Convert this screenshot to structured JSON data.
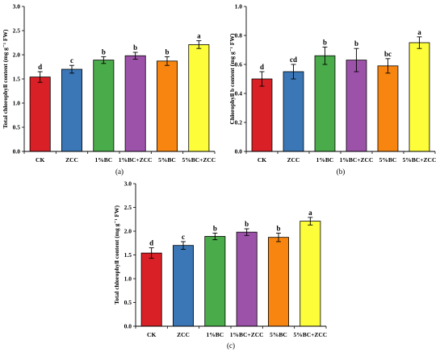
{
  "colors": {
    "CK": "#d92026",
    "ZCC": "#3b77b6",
    "1%BC": "#4aab4a",
    "1%BC+ZCC": "#9d52a9",
    "5%BC": "#f7850f",
    "5%BC+ZCC": "#fdfd3a"
  },
  "chart_data": [
    {
      "type": "bar",
      "caption": "(a)",
      "ylabel": "Total chlorophyll content (mg g⁻¹ FW)",
      "ylim": [
        0,
        3.0
      ],
      "yticks": [
        "0.0",
        "0.5",
        "1.0",
        "1.5",
        "2.0",
        "2.5",
        "3.0"
      ],
      "categories": [
        "CK",
        "ZCC",
        "1%BC",
        "1%BC+ZCC",
        "5%BC",
        "5%BC+ZCC"
      ],
      "values": [
        1.54,
        1.7,
        1.89,
        1.98,
        1.87,
        2.21
      ],
      "errors": [
        0.11,
        0.08,
        0.07,
        0.07,
        0.09,
        0.08
      ],
      "letters": [
        "d",
        "c",
        "b",
        "b",
        "b",
        "a"
      ]
    },
    {
      "type": "bar",
      "caption": "(b)",
      "ylabel": "Chlorophyll b content (mg g⁻¹ FW)",
      "ylim": [
        0,
        1.0
      ],
      "yticks": [
        "0.0",
        "0.2",
        "0.4",
        "0.6",
        "0.8",
        "1.0"
      ],
      "categories": [
        "CK",
        "ZCC",
        "1%BC",
        "1%BC+ZCC",
        "5%BC",
        "5%BC+ZCC"
      ],
      "values": [
        0.5,
        0.55,
        0.66,
        0.63,
        0.59,
        0.75
      ],
      "errors": [
        0.05,
        0.05,
        0.06,
        0.08,
        0.05,
        0.04
      ],
      "letters": [
        "d",
        "cd",
        "b",
        "b",
        "bc",
        "a"
      ]
    },
    {
      "type": "bar",
      "caption": "(c)",
      "ylabel": "Total chlorophyll content (mg g⁻¹ FW)",
      "ylim": [
        0,
        3.0
      ],
      "yticks": [
        "0.0",
        "0.5",
        "1.0",
        "1.5",
        "2.0",
        "2.5",
        "3.0"
      ],
      "categories": [
        "CK",
        "ZCC",
        "1%BC",
        "1%BC+ZCC",
        "5%BC",
        "5%BC+ZCC"
      ],
      "values": [
        1.54,
        1.7,
        1.89,
        1.98,
        1.87,
        2.21
      ],
      "errors": [
        0.11,
        0.08,
        0.07,
        0.07,
        0.09,
        0.08
      ],
      "letters": [
        "d",
        "c",
        "b",
        "b",
        "b",
        "a"
      ]
    }
  ]
}
